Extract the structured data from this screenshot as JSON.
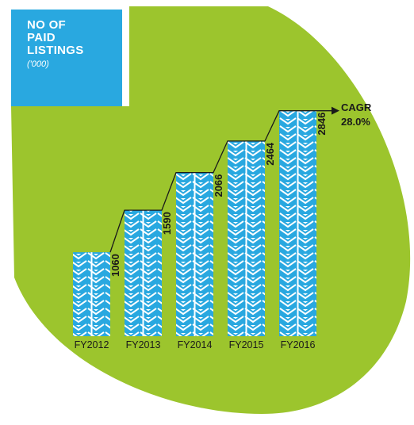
{
  "title": {
    "lines": [
      "NO OF",
      "PAID",
      "LISTINGS"
    ],
    "unit": "('000)"
  },
  "annotation": {
    "line1": "CAGR",
    "line2": "28.0%"
  },
  "colors": {
    "background_blob": "#9cc52d",
    "bar_fill": "#29a8e0",
    "bar_pattern": "#ffffff",
    "title_box": "#29a8e0",
    "text": "#1a1a1a"
  },
  "chart_data": {
    "type": "bar",
    "title": "NO OF PAID LISTINGS",
    "ylabel": "('000)",
    "xlabel": "",
    "categories": [
      "FY2012",
      "FY2013",
      "FY2014",
      "FY2015",
      "FY2016"
    ],
    "values": [
      1060,
      1590,
      2066,
      2464,
      2846
    ],
    "ylim": [
      0,
      3000
    ],
    "value_label_orientation": "vertical",
    "grid": false,
    "connector": "step line joining bar tops, ending in arrow",
    "annotation": "CAGR 28.0%"
  }
}
